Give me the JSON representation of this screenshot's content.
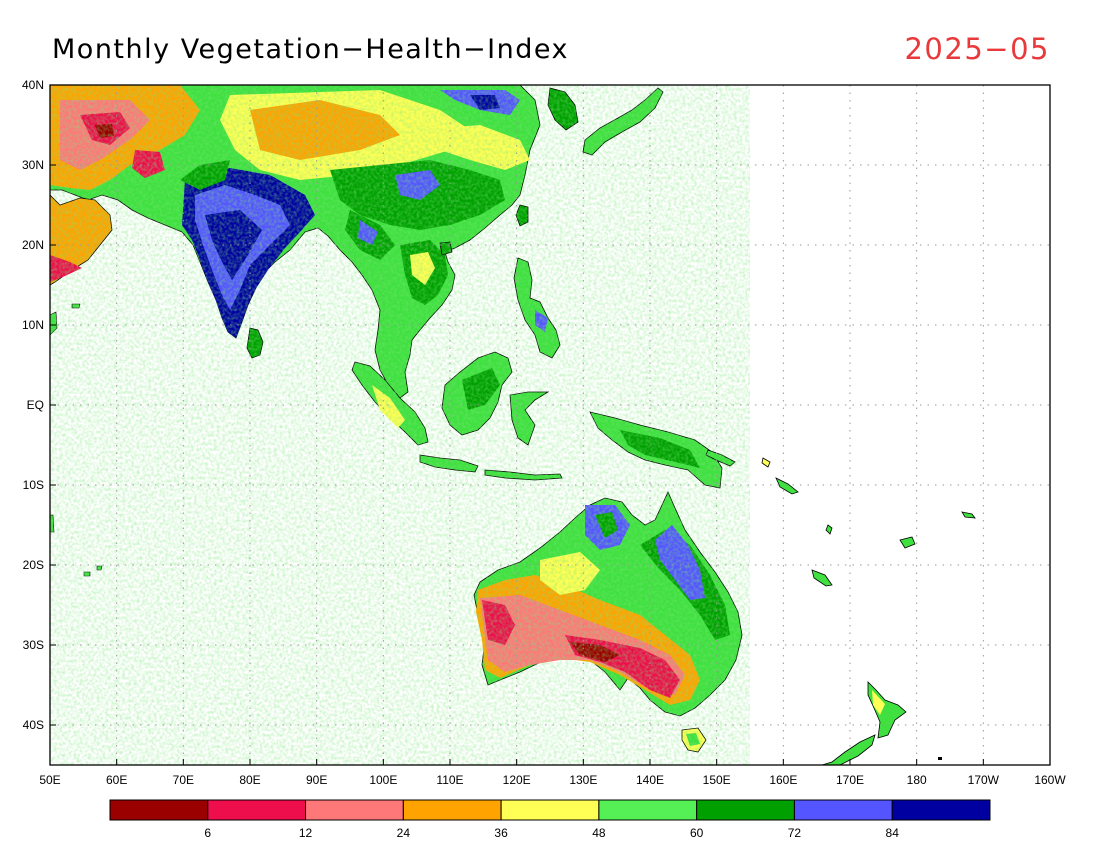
{
  "header": {
    "title": "Monthly Vegetation−Health−Index",
    "date": "2025−05"
  },
  "map": {
    "projection": "lat-lon",
    "extent": {
      "lon_min": 50,
      "lon_max": 200,
      "lat_min": -45,
      "lat_max": 40
    },
    "lon_ticks": [
      {
        "value": 50,
        "label": "50E"
      },
      {
        "value": 60,
        "label": "60E"
      },
      {
        "value": 70,
        "label": "70E"
      },
      {
        "value": 80,
        "label": "80E"
      },
      {
        "value": 90,
        "label": "90E"
      },
      {
        "value": 100,
        "label": "100E"
      },
      {
        "value": 110,
        "label": "110E"
      },
      {
        "value": 120,
        "label": "120E"
      },
      {
        "value": 130,
        "label": "130E"
      },
      {
        "value": 140,
        "label": "140E"
      },
      {
        "value": 150,
        "label": "150E"
      },
      {
        "value": 160,
        "label": "160E"
      },
      {
        "value": 170,
        "label": "170E"
      },
      {
        "value": 180,
        "label": "180"
      },
      {
        "value": 190,
        "label": "170W"
      },
      {
        "value": 200,
        "label": "160W"
      }
    ],
    "lat_ticks": [
      {
        "value": 40,
        "label": "40N"
      },
      {
        "value": 30,
        "label": "30N"
      },
      {
        "value": 20,
        "label": "20N"
      },
      {
        "value": 10,
        "label": "10N"
      },
      {
        "value": 0,
        "label": "EQ"
      },
      {
        "value": -10,
        "label": "10S"
      },
      {
        "value": -20,
        "label": "20S"
      },
      {
        "value": -30,
        "label": "30S"
      },
      {
        "value": -40,
        "label": "40S"
      }
    ],
    "gridlines": true,
    "colors": {
      "coastline": "#000000",
      "grid": "#9a9a9a",
      "ocean": "#ffffff"
    }
  },
  "colorbar": {
    "colors": [
      "#9b0000",
      "#ee0e4b",
      "#ff7879",
      "#ffa300",
      "#ffff55",
      "#55f055",
      "#00a000",
      "#5555ff",
      "#0000a0"
    ],
    "labels": [
      "6",
      "12",
      "24",
      "36",
      "48",
      "60",
      "72",
      "84"
    ]
  }
}
